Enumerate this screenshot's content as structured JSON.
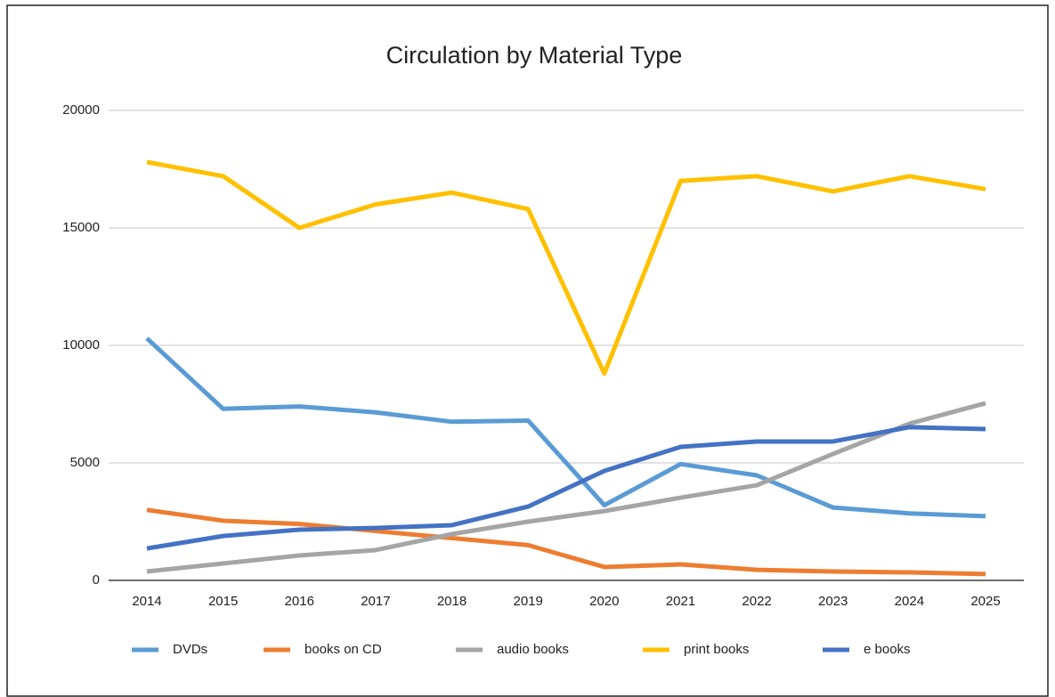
{
  "chart_data": {
    "type": "line",
    "title": "Circulation by Material Type",
    "categories": [
      "2014",
      "2015",
      "2016",
      "2017",
      "2018",
      "2019",
      "2020",
      "2021",
      "2022",
      "2023",
      "2024",
      "2025"
    ],
    "ylim": [
      0,
      20000
    ],
    "yticks": [
      0,
      5000,
      10000,
      15000,
      20000
    ],
    "grid": true,
    "legend": "bottom",
    "series": [
      {
        "name": "DVDs",
        "color": "#5b9bd5",
        "values": [
          10300,
          7300,
          7400,
          7150,
          6750,
          6800,
          3200,
          4950,
          4470,
          3100,
          2850,
          2730
        ]
      },
      {
        "name": "books on CD",
        "color": "#ed7d31",
        "values": [
          3000,
          2540,
          2400,
          2100,
          1800,
          1500,
          570,
          680,
          450,
          380,
          340,
          270
        ]
      },
      {
        "name": "audio books",
        "color": "#a5a5a5",
        "values": [
          380,
          720,
          1060,
          1290,
          1970,
          2500,
          2950,
          3520,
          4050,
          5380,
          6670,
          7540
        ]
      },
      {
        "name": "print books",
        "color": "#ffc000",
        "values": [
          17800,
          17200,
          15000,
          16000,
          16500,
          15800,
          8800,
          17000,
          17200,
          16550,
          17200,
          16650
        ]
      },
      {
        "name": "e books",
        "color": "#4472c4",
        "values": [
          1360,
          1890,
          2160,
          2230,
          2350,
          3140,
          4660,
          5680,
          5910,
          5910,
          6520,
          6440
        ]
      }
    ]
  }
}
